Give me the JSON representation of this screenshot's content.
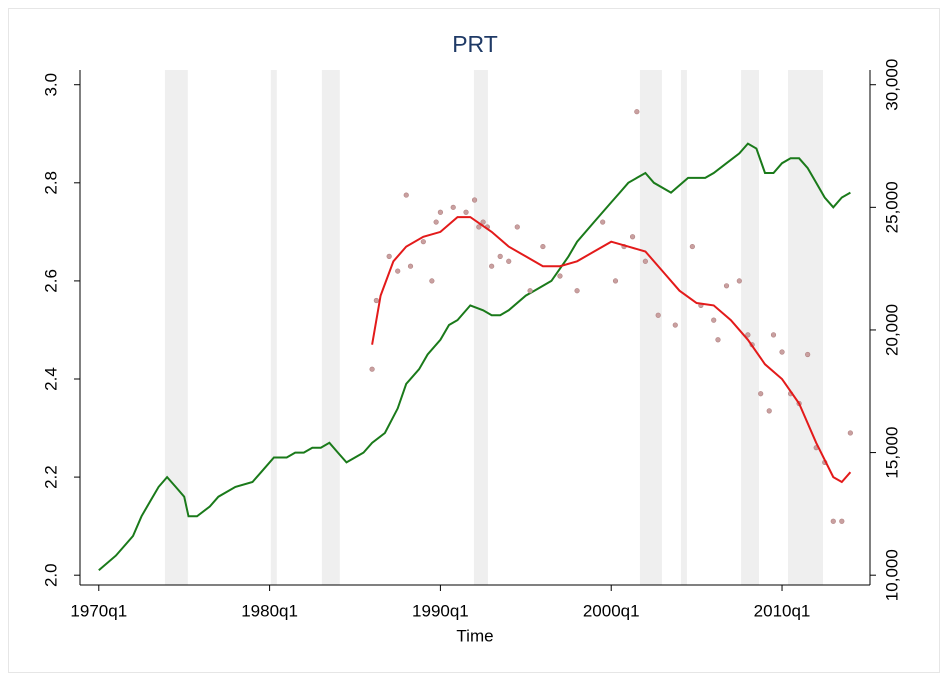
{
  "chart_data": {
    "type": "line",
    "title": "PRT",
    "x_label": "Time",
    "xlim": [
      1968.9,
      2015.15
    ],
    "xticks": [
      {
        "value": 1970,
        "label": "1970q1"
      },
      {
        "value": 1980,
        "label": "1980q1"
      },
      {
        "value": 1990,
        "label": "1990q1"
      },
      {
        "value": 2000,
        "label": "2000q1"
      },
      {
        "value": 2010,
        "label": "2010q1"
      }
    ],
    "ylim": [
      1.98,
      3.03
    ],
    "yticks": [
      {
        "value": 2,
        "label": "2.0"
      },
      2.2,
      2.4,
      2.6,
      2.8,
      {
        "value": 3,
        "label": "3.0"
      }
    ],
    "y2lim": [
      9600,
      30600
    ],
    "y2ticks": [
      {
        "value": 10000,
        "label": "10,000"
      },
      {
        "value": 15000,
        "label": "15,000"
      },
      {
        "value": 20000,
        "label": "20,000"
      },
      {
        "value": 25000,
        "label": "25,000"
      },
      {
        "value": 30000,
        "label": "30,000"
      }
    ],
    "shading_color": "#efefef",
    "shading": [
      [
        1973.87,
        1975.21
      ],
      [
        1980.07,
        1980.42
      ],
      [
        1983.06,
        1984.11
      ],
      [
        1991.96,
        1992.78
      ],
      [
        2001.68,
        2002.97
      ],
      [
        2004.08,
        2004.43
      ],
      [
        2007.6,
        2008.65
      ],
      [
        2010.35,
        2012.4
      ]
    ],
    "series": [
      {
        "type": "line",
        "color": "#1a7a1a",
        "axis": "y",
        "x": [
          1970,
          1971,
          1972,
          1972.5,
          1973,
          1973.5,
          1974,
          1974.5,
          1975,
          1975.25,
          1975.75,
          1976.5,
          1977,
          1978,
          1979,
          1979.5,
          1980.25,
          1981,
          1981.5,
          1982,
          1982.5,
          1983,
          1983.5,
          1984,
          1984.5,
          1985,
          1985.5,
          1986,
          1986.75,
          1987.5,
          1988,
          1988.75,
          1989.25,
          1990,
          1990.5,
          1991,
          1991.75,
          1992.5,
          1993,
          1993.5,
          1994,
          1995,
          1995.5,
          1996.5,
          1997.5,
          1998,
          1999,
          2000,
          2000.5,
          2001,
          2001.5,
          2002,
          2002.5,
          2003.5,
          2004.5,
          2005.5,
          2006,
          2006.75,
          2007.5,
          2008,
          2008.5,
          2009,
          2009.5,
          2010,
          2010.5,
          2011,
          2011.5,
          2012,
          2012.5,
          2013,
          2013.5,
          2014
        ],
        "values": [
          2.01,
          2.04,
          2.08,
          2.12,
          2.15,
          2.18,
          2.2,
          2.18,
          2.16,
          2.12,
          2.12,
          2.14,
          2.16,
          2.18,
          2.19,
          2.21,
          2.24,
          2.24,
          2.25,
          2.25,
          2.26,
          2.26,
          2.27,
          2.25,
          2.23,
          2.24,
          2.25,
          2.27,
          2.29,
          2.34,
          2.39,
          2.42,
          2.45,
          2.48,
          2.51,
          2.52,
          2.55,
          2.54,
          2.53,
          2.53,
          2.54,
          2.57,
          2.58,
          2.6,
          2.65,
          2.68,
          2.72,
          2.76,
          2.78,
          2.8,
          2.81,
          2.82,
          2.8,
          2.78,
          2.81,
          2.81,
          2.82,
          2.84,
          2.86,
          2.88,
          2.87,
          2.82,
          2.82,
          2.84,
          2.85,
          2.85,
          2.83,
          2.8,
          2.77,
          2.75,
          2.77,
          2.78
        ]
      },
      {
        "type": "scatter",
        "color": "#c9a0a0",
        "axis": "y2",
        "x": [
          1986,
          1986.25,
          1987,
          1987.5,
          1988,
          1988.25,
          1989,
          1989.5,
          1989.75,
          1990,
          1990.75,
          1991.5,
          1992,
          1992.25,
          1992.5,
          1992.75,
          1993,
          1993.5,
          1994,
          1994.5,
          1995.25,
          1996,
          1997,
          1998,
          1999.5,
          2000.25,
          2000.75,
          2001.25,
          2001.5,
          2002,
          2002.75,
          2003.75,
          2004.75,
          2005.25,
          2006,
          2006.25,
          2006.75,
          2007.5,
          2008,
          2008.25,
          2008.75,
          2009.25,
          2009.5,
          2010,
          2010.5,
          2011,
          2011.5,
          2012,
          2012.5,
          2013,
          2013.5,
          2014
        ],
        "values": [
          18400,
          21200,
          23000,
          22400,
          25500,
          22600,
          23600,
          22000,
          24400,
          24800,
          25000,
          24800,
          25300,
          24200,
          24400,
          24200,
          22600,
          23000,
          22800,
          24200,
          21600,
          23400,
          22200,
          21600,
          24400,
          22000,
          23400,
          23800,
          28900,
          22800,
          20600,
          20200,
          23400,
          21000,
          20400,
          19600,
          21800,
          22000,
          19800,
          19400,
          17400,
          16700,
          19800,
          19100,
          17400,
          17000,
          19000,
          15200,
          14600,
          12200,
          12200,
          15800
        ]
      },
      {
        "type": "line",
        "color": "#e31a1a",
        "axis": "y2",
        "x": [
          1986,
          1986.5,
          1987.25,
          1988,
          1989,
          1990,
          1991,
          1991.75,
          1993,
          1994,
          1995,
          1996,
          1997,
          1998,
          1999,
          2000,
          2001,
          2002,
          2003,
          2004,
          2005,
          2006,
          2007,
          2008,
          2009,
          2010,
          2011,
          2012,
          2013,
          2013.5,
          2014
        ],
        "values": [
          19400,
          21400,
          22800,
          23400,
          23800,
          24000,
          24600,
          24600,
          24000,
          23400,
          23000,
          22600,
          22600,
          22800,
          23200,
          23600,
          23400,
          23200,
          22400,
          21600,
          21100,
          21000,
          20400,
          19600,
          18600,
          18000,
          17000,
          15400,
          14000,
          13800,
          14200
        ]
      }
    ]
  }
}
